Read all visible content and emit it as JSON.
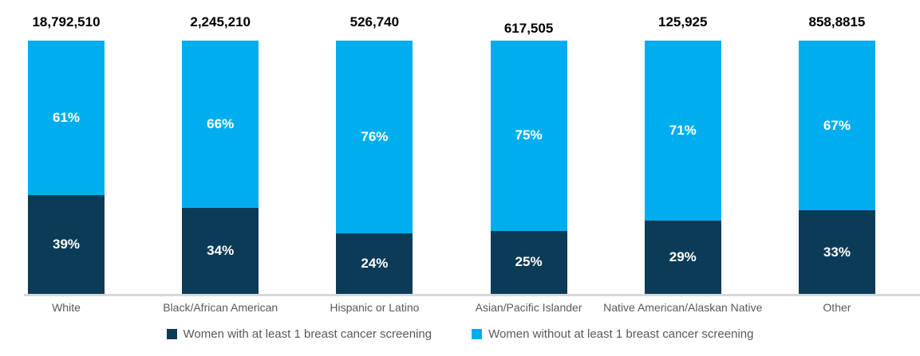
{
  "chart_data": {
    "type": "bar",
    "stacked": true,
    "stacked_as": "percent",
    "orientation": "vertical",
    "title": "",
    "xlabel": "",
    "ylabel": "",
    "grid": false,
    "ylim": [
      0,
      100
    ],
    "legend_position": "bottom",
    "axis_line_color": "#D9D9D9",
    "category_label_color": "#595959",
    "total_label_color": "#000000",
    "segment_label_color": "#FFFFFF",
    "background_color": "#FFFFFF",
    "categories": [
      "White",
      "Black/African American",
      "Hispanic or Latino",
      "Asian/Pacific Islander",
      "Native American/Alaskan Native",
      "Other"
    ],
    "totals": [
      "18,792,510",
      "2,245,210",
      "526,740",
      "617,505",
      "125,925",
      "858,8815"
    ],
    "series": [
      {
        "name": "Women with at least 1 breast cancer screening",
        "color": "#0C3B57",
        "values": [
          39,
          34,
          24,
          25,
          29,
          33
        ],
        "labels": [
          "39%",
          "34%",
          "24%",
          "25%",
          "29%",
          "33%"
        ]
      },
      {
        "name": "Women without at least 1 breast cancer screening",
        "color": "#00AEF0",
        "values": [
          61,
          66,
          76,
          75,
          71,
          67
        ],
        "labels": [
          "61%",
          "66%",
          "76%",
          "75%",
          "71%",
          "67%"
        ]
      }
    ]
  }
}
